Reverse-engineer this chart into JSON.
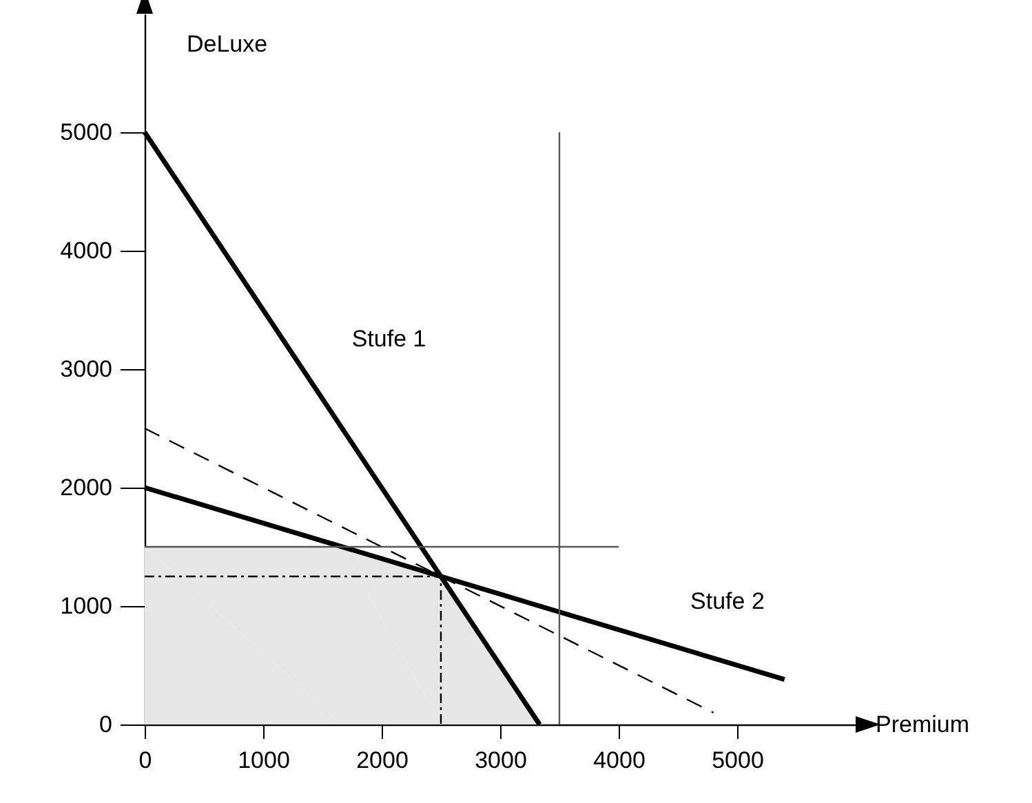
{
  "chart_data": {
    "type": "line",
    "xlabel": "Premium",
    "ylabel": "DeLuxe",
    "xlim": [
      0,
      6000
    ],
    "ylim": [
      0,
      6000
    ],
    "xticks": [
      0,
      1000,
      2000,
      3000,
      4000,
      5000
    ],
    "yticks": [
      0,
      1000,
      2000,
      3000,
      4000,
      5000
    ],
    "grid": false,
    "series": [
      {
        "type": "area",
        "color": "#e6e6e6",
        "x": [
          0,
          1667,
          2500,
          3333
        ],
        "values": [
          1500,
          1500,
          1250,
          0
        ]
      },
      {
        "name": "Stufe 1",
        "color": "#000000",
        "x": [
          0,
          3333
        ],
        "values": [
          5000,
          0
        ]
      },
      {
        "name": "Stufe 2",
        "color": "#000000",
        "x": [
          0,
          5400
        ],
        "values": [
          2000,
          380
        ]
      },
      {
        "color": "#000000",
        "line_style": "dashed",
        "x": [
          0,
          4800
        ],
        "values": [
          2500,
          100
        ]
      },
      {
        "color": "#555555",
        "x": [
          3500,
          3500
        ],
        "values": [
          0,
          5000
        ]
      },
      {
        "color": "#555555",
        "x": [
          0,
          4000
        ],
        "values": [
          1500,
          1500
        ]
      },
      {
        "color": "#000000",
        "line_style": "dotted",
        "x": [
          0,
          2500,
          2500
        ],
        "values": [
          1250,
          1250,
          0
        ]
      }
    ]
  }
}
